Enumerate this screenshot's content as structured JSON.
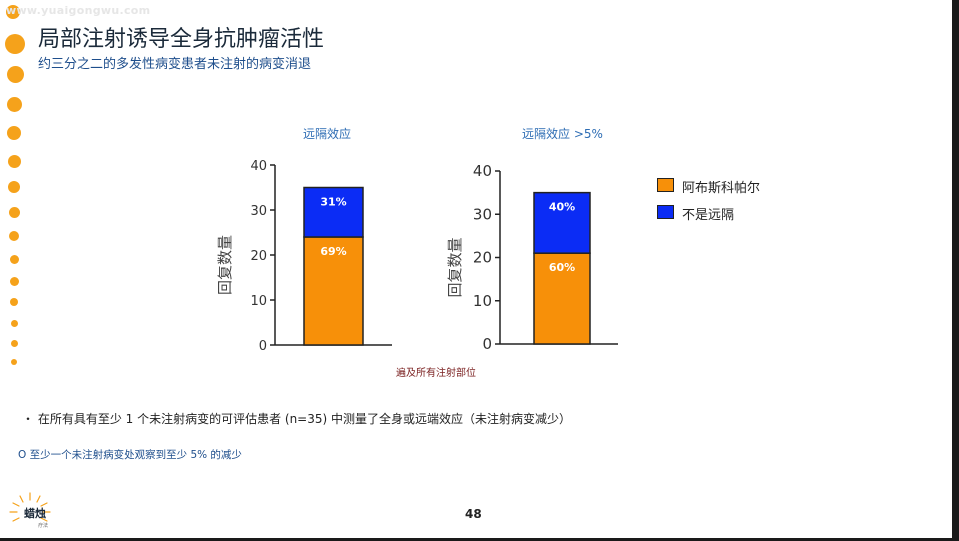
{
  "watermark": "www.yuaigongwu.com",
  "title": "局部注射诱导全身抗肿瘤活性",
  "subtitle": "约三分之二的多发性病变患者未注射的病变消退",
  "legend": [
    {
      "label": "阿布斯科帕尔",
      "color": "#f79009"
    },
    {
      "label": "不是远隔",
      "color": "#0b2cf5"
    }
  ],
  "chart_data": [
    {
      "type": "bar",
      "title": "远隔效应",
      "ylabel": "回复数量",
      "ylim": [
        0,
        40
      ],
      "yticks": [
        0,
        10,
        20,
        30,
        40
      ],
      "categories": [
        ""
      ],
      "series": [
        {
          "name": "阿布斯科帕尔",
          "values": [
            24
          ],
          "label": "69%",
          "color": "#f79009"
        },
        {
          "name": "不是远隔",
          "values": [
            11
          ],
          "label": "31%",
          "color": "#0b2cf5"
        }
      ]
    },
    {
      "type": "bar",
      "title": "远隔效应 >5%",
      "ylabel": "回复数量",
      "ylim": [
        0,
        40
      ],
      "yticks": [
        0,
        10,
        20,
        30,
        40
      ],
      "categories": [
        ""
      ],
      "series": [
        {
          "name": "阿布斯科帕尔",
          "values": [
            21
          ],
          "label": "60%",
          "color": "#f79009"
        },
        {
          "name": "不是远隔",
          "values": [
            14
          ],
          "label": "40%",
          "color": "#0b2cf5"
        }
      ]
    }
  ],
  "footnote": "遍及所有注射部位",
  "bullet": "・ 在所有具有至少 1 个未注射病变的可评估患者 (n=35) 中测量了全身或远端效应（未注射病变减少）",
  "note": "O 至少一个未注射病变处观察到至少 5% 的减少",
  "page_number": "48",
  "logo": {
    "text": "蜡烛",
    "sub": "疗法"
  },
  "colors": {
    "accent_dots": "#f5a21b",
    "title": "#1b2a3a",
    "subtitle": "#1e4e8c"
  }
}
